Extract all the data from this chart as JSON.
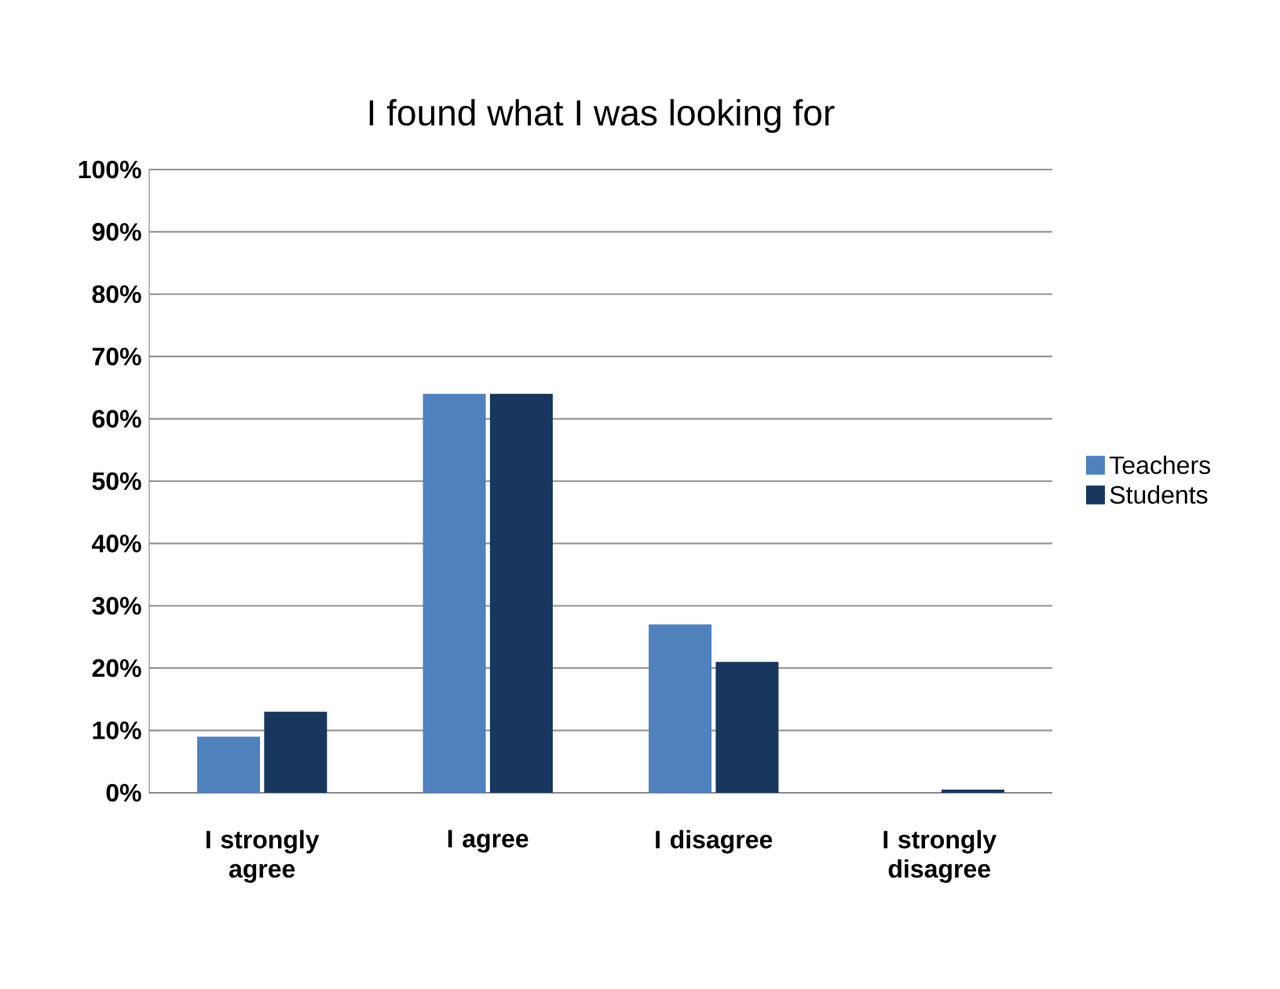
{
  "chart_data": {
    "type": "bar",
    "title": "I found what I was looking for",
    "categories": [
      "I strongly agree",
      "I agree",
      "I disagree",
      "I strongly disagree"
    ],
    "series": [
      {
        "name": "Teachers",
        "color": "#4f81bd",
        "values": [
          9,
          64,
          27,
          0
        ]
      },
      {
        "name": "Students",
        "color": "#17375e",
        "values": [
          13,
          64,
          21,
          0.5
        ]
      }
    ],
    "ylim": [
      0,
      100
    ],
    "yticks": [
      {
        "value": 0,
        "label": "0%"
      },
      {
        "value": 10,
        "label": "10%"
      },
      {
        "value": 20,
        "label": "20%"
      },
      {
        "value": 30,
        "label": "30%"
      },
      {
        "value": 40,
        "label": "40%"
      },
      {
        "value": 50,
        "label": "50%"
      },
      {
        "value": 60,
        "label": "60%"
      },
      {
        "value": 70,
        "label": "70%"
      },
      {
        "value": 80,
        "label": "80%"
      },
      {
        "value": 90,
        "label": "90%"
      },
      {
        "value": 100,
        "label": "100%"
      }
    ],
    "grid": "y",
    "legend": "right"
  }
}
